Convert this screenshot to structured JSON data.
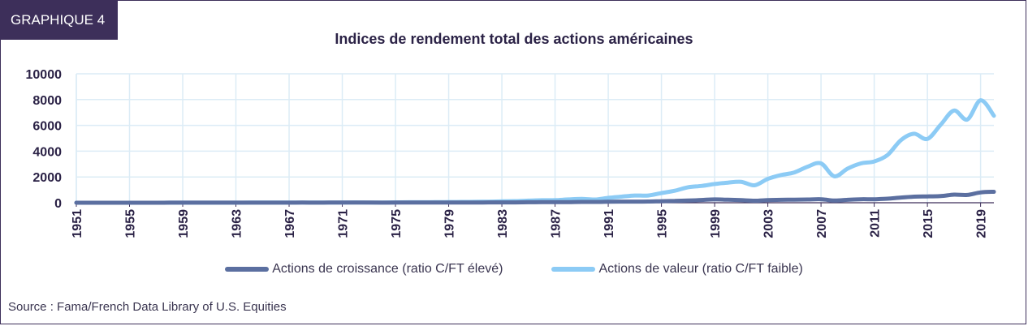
{
  "header": {
    "badge": "GRAPHIQUE 4"
  },
  "source": "Source : Fama/French Data Library of U.S. Equities",
  "colors": {
    "growth": "#5b6fa0",
    "value": "#8ccbf5",
    "grid": "#dcecf6",
    "axis": "#3d2f5a"
  },
  "chart_data": {
    "type": "line",
    "title": "Indices de rendement total des actions américaines",
    "xlabel": "",
    "ylabel": "",
    "xlim": [
      1951,
      2020
    ],
    "ylim": [
      0,
      10000
    ],
    "yticks": [
      0,
      2000,
      4000,
      6000,
      8000,
      10000
    ],
    "xticks": [
      1951,
      1955,
      1959,
      1963,
      1967,
      1971,
      1975,
      1979,
      1983,
      1987,
      1991,
      1995,
      1999,
      2003,
      2007,
      2011,
      2015,
      2019
    ],
    "grid": true,
    "legend_position": "bottom",
    "x": [
      1951,
      1952,
      1953,
      1954,
      1955,
      1956,
      1957,
      1958,
      1959,
      1960,
      1961,
      1962,
      1963,
      1964,
      1965,
      1966,
      1967,
      1968,
      1969,
      1970,
      1971,
      1972,
      1973,
      1974,
      1975,
      1976,
      1977,
      1978,
      1979,
      1980,
      1981,
      1982,
      1983,
      1984,
      1985,
      1986,
      1987,
      1988,
      1989,
      1990,
      1991,
      1992,
      1993,
      1994,
      1995,
      1996,
      1997,
      1998,
      1999,
      2000,
      2001,
      2002,
      2003,
      2004,
      2005,
      2006,
      2007,
      2008,
      2009,
      2010,
      2011,
      2012,
      2013,
      2014,
      2015,
      2016,
      2017,
      2018,
      2019,
      2020
    ],
    "series": [
      {
        "name": "Actions de croissance (ratio C/FT élevé)",
        "values": [
          1,
          1.2,
          1.3,
          1.7,
          2.2,
          2.5,
          2.3,
          3.2,
          3.7,
          3.8,
          4.8,
          4.4,
          5.4,
          6.3,
          7.2,
          6.8,
          8.9,
          9.8,
          9.3,
          9.8,
          11.5,
          13.4,
          11.2,
          8.3,
          11.2,
          13.4,
          12.6,
          13.4,
          15.7,
          20.1,
          19,
          22.4,
          26.9,
          27.5,
          35.8,
          42.5,
          43.7,
          49.3,
          62.7,
          60.5,
          80.6,
          85.1,
          89.6,
          91.8,
          118.7,
          141.1,
          170.2,
          212.8,
          260,
          230,
          202,
          157,
          206,
          224,
          240,
          251,
          269,
          170,
          224,
          269,
          273,
          313,
          403,
          470,
          493,
          515,
          627,
          605,
          800,
          850
        ]
      },
      {
        "name": "Actions de valeur (ratio C/FT faible)",
        "values": [
          1,
          1.3,
          1.4,
          2.2,
          2.8,
          3,
          2.9,
          4.5,
          5.2,
          5.3,
          6.9,
          6.6,
          8.4,
          10.1,
          12.1,
          11.3,
          15.4,
          19.9,
          17.9,
          18.8,
          21.4,
          24.2,
          21.3,
          18.9,
          27.5,
          37.3,
          38.8,
          42.6,
          53.7,
          61.5,
          69.8,
          84.6,
          115.3,
          124.6,
          160.8,
          196,
          199,
          260,
          300,
          250,
          380,
          470,
          560,
          560,
          750,
          930,
          1200,
          1300,
          1450,
          1560,
          1620,
          1350,
          1850,
          2150,
          2350,
          2800,
          3050,
          2050,
          2650,
          3050,
          3200,
          3700,
          4850,
          5350,
          4950,
          6050,
          7150,
          6450,
          7950,
          6750
        ]
      }
    ]
  }
}
